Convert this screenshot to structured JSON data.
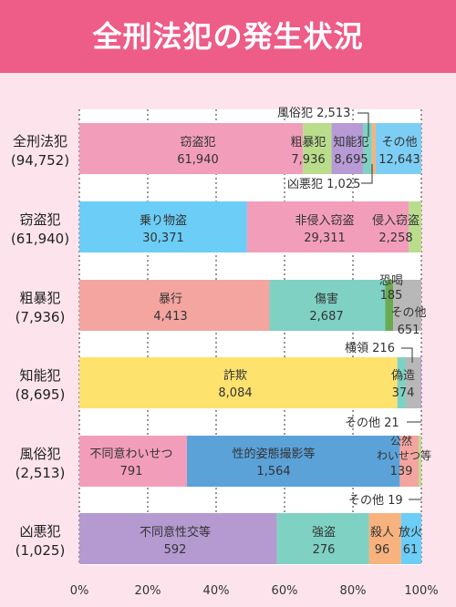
{
  "title": "全刑法犯の発生状況",
  "chart_data": {
    "type": "bar",
    "stacked": true,
    "orientation": "horizontal",
    "normalized": "percent",
    "x_ticks": [
      "0%",
      "20%",
      "40%",
      "60%",
      "80%",
      "100%"
    ],
    "xlim": [
      0,
      100
    ],
    "grid": true,
    "rows": [
      {
        "name": "全刑法犯",
        "total": "(94,752)",
        "segments": [
          {
            "label": "窃盗犯",
            "value_text": "61,940",
            "value": 61940,
            "color": "#f29ebb"
          },
          {
            "label": "粗暴犯",
            "value_text": "7,936",
            "value": 7936,
            "color": "#b9dd8b"
          },
          {
            "label": "知能犯",
            "value_text": "8,695",
            "value": 8695,
            "color": "#b79ad6"
          },
          {
            "label": "風俗犯",
            "value_text": "2,513",
            "value": 2513,
            "color": "#7fd1c4"
          },
          {
            "label": "凶悪犯",
            "value_text": "1,025",
            "value": 1025,
            "color": "#f7b27d"
          },
          {
            "label": "その他",
            "value_text": "12,643",
            "value": 12643,
            "color": "#7dcef4"
          }
        ]
      },
      {
        "name": "窃盗犯",
        "total": "(61,940)",
        "segments": [
          {
            "label": "乗り物盗",
            "value_text": "30,371",
            "value": 30371,
            "color": "#6ccdf6"
          },
          {
            "label": "非侵入窃盗",
            "value_text": "29,311",
            "value": 29311,
            "color": "#f29ebb"
          },
          {
            "label": "侵入窃盗",
            "value_text": "2,258",
            "value": 2258,
            "color": "#b9dd8b"
          }
        ]
      },
      {
        "name": "粗暴犯",
        "total": "(7,936)",
        "segments": [
          {
            "label": "暴行",
            "value_text": "4,413",
            "value": 4413,
            "color": "#f4a5a0"
          },
          {
            "label": "傷害",
            "value_text": "2,687",
            "value": 2687,
            "color": "#7fd1c4"
          },
          {
            "label": "恐喝",
            "value_text": "185",
            "value": 185,
            "color": "#6aaa52"
          },
          {
            "label": "その他",
            "value_text": "651",
            "value": 651,
            "color": "#b8b8b8"
          }
        ]
      },
      {
        "name": "知能犯",
        "total": "(8,695)",
        "segments": [
          {
            "label": "詐欺",
            "value_text": "8,084",
            "value": 8084,
            "color": "#fee26e"
          },
          {
            "label": "横領",
            "value_text": "216",
            "value": 216,
            "color": "#7fd1c4"
          },
          {
            "label": "偽造",
            "value_text": "374",
            "value": 374,
            "color": "#b8b8b8"
          },
          {
            "label": "その他",
            "value_text": "21",
            "value": 21,
            "color": "#b79ad6"
          }
        ]
      },
      {
        "name": "風俗犯",
        "total": "(2,513)",
        "segments": [
          {
            "label": "不同意わいせつ",
            "value_text": "791",
            "value": 791,
            "color": "#f29ebb"
          },
          {
            "label": "性的姿態撮影等",
            "value_text": "1,564",
            "value": 1564,
            "color": "#5ba2d9"
          },
          {
            "label": "公然わいせつ等",
            "value_text": "139",
            "value": 139,
            "color": "#f4a5a0"
          },
          {
            "label": "その他",
            "value_text": "19",
            "value": 19,
            "color": "#b9dd8b"
          }
        ]
      },
      {
        "name": "凶悪犯",
        "total": "(1,025)",
        "segments": [
          {
            "label": "不同意性交等",
            "value_text": "592",
            "value": 592,
            "color": "#b49ad0"
          },
          {
            "label": "強盗",
            "value_text": "276",
            "value": 276,
            "color": "#7fd1c4"
          },
          {
            "label": "殺人",
            "value_text": "96",
            "value": 96,
            "color": "#f7b27d"
          },
          {
            "label": "放火",
            "value_text": "61",
            "value": 61,
            "color": "#6ccdf6"
          }
        ]
      }
    ]
  }
}
